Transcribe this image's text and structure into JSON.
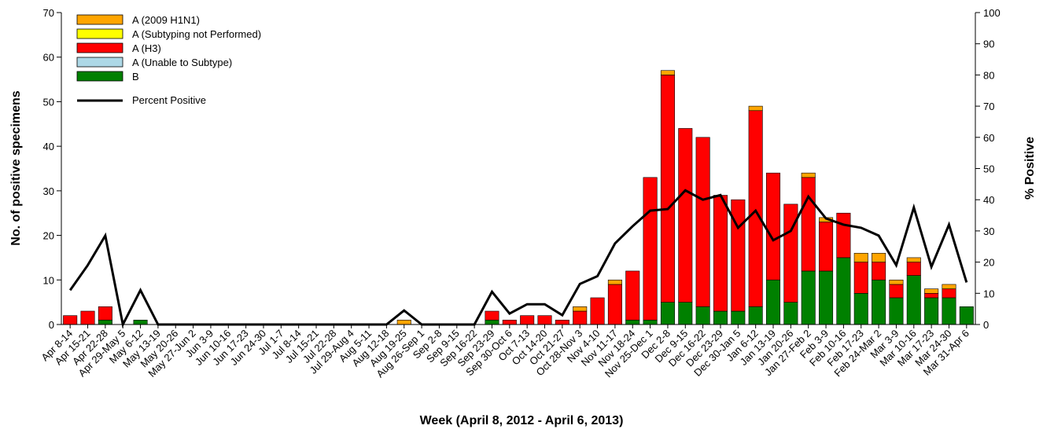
{
  "chart_data": {
    "type": "bar",
    "stacked": true,
    "xlabel": "Week (April 8, 2012 - April 6, 2013)",
    "ylabel": "No. of positive specimens",
    "y2label": "% Positive",
    "ylim": [
      0,
      70
    ],
    "yticks": [
      0,
      10,
      20,
      30,
      40,
      50,
      60,
      70
    ],
    "y2lim": [
      0,
      100
    ],
    "y2ticks": [
      0,
      10,
      20,
      30,
      40,
      50,
      60,
      70,
      80,
      90,
      100
    ],
    "grid": false,
    "legend_position": "top-left",
    "categories": [
      "Apr 8-14",
      "Apr 15-21",
      "Apr 22-28",
      "Apr 29-May 5",
      "May 6-12",
      "May 13-19",
      "May 20-26",
      "May 27-Jun 2",
      "Jun 3-9",
      "Jun 10-16",
      "Jun 17-23",
      "Jun 24-30",
      "Jul 1-7",
      "Jul 8-14",
      "Jul 15-21",
      "Jul 22-28",
      "Jul 29-Aug 4",
      "Aug 5-11",
      "Aug 12-18",
      "Aug 19-25",
      "Aug 26-Sep 1",
      "Sep 2-8",
      "Sep 9-15",
      "Sep 16-22",
      "Sep 23-29",
      "Sep 30-Oct 6",
      "Oct 7-13",
      "Oct 14-20",
      "Oct 21-27",
      "Oct 28-Nov 3",
      "Nov 4-10",
      "Nov 11-17",
      "Nov 18-24",
      "Nov 25-Dec 1",
      "Dec 2-8",
      "Dec 9-15",
      "Dec 16-22",
      "Dec 23-29",
      "Dec 30-Jan 5",
      "Jan 6-12",
      "Jan 13-19",
      "Jan 20-26",
      "Jan 27-Feb 2",
      "Feb 3-9",
      "Feb 10-16",
      "Feb 17-23",
      "Feb 24-Mar 2",
      "Mar 3-9",
      "Mar 10-16",
      "Mar 17-23",
      "Mar 24-30",
      "Mar 31-Apr 6"
    ],
    "series": [
      {
        "name": "B",
        "color": "#008000",
        "values": [
          0,
          0,
          1,
          0,
          1,
          0,
          0,
          0,
          0,
          0,
          0,
          0,
          0,
          0,
          0,
          0,
          0,
          0,
          0,
          0,
          0,
          0,
          0,
          0,
          1,
          0,
          0,
          0,
          0,
          0,
          0,
          0,
          1,
          1,
          5,
          5,
          4,
          3,
          3,
          4,
          10,
          5,
          12,
          12,
          15,
          7,
          10,
          6,
          11,
          6,
          6,
          4
        ]
      },
      {
        "name": "A (Unable to Subtype)",
        "color": "#add8e6",
        "values": [
          0,
          0,
          0,
          0,
          0,
          0,
          0,
          0,
          0,
          0,
          0,
          0,
          0,
          0,
          0,
          0,
          0,
          0,
          0,
          0,
          0,
          0,
          0,
          0,
          0,
          0,
          0,
          0,
          0,
          0,
          0,
          0,
          0,
          0,
          0,
          0,
          0,
          0,
          0,
          0,
          0,
          0,
          0,
          0,
          0,
          0,
          0,
          0,
          0,
          0,
          0,
          0
        ]
      },
      {
        "name": "A (H3)",
        "color": "#ff0000",
        "values": [
          2,
          3,
          3,
          0,
          0,
          0,
          0,
          0,
          0,
          0,
          0,
          0,
          0,
          0,
          0,
          0,
          0,
          0,
          0,
          0,
          0,
          0,
          0,
          0,
          2,
          1,
          2,
          2,
          1,
          3,
          6,
          9,
          11,
          32,
          51,
          39,
          38,
          26,
          25,
          44,
          24,
          22,
          21,
          11,
          10,
          7,
          4,
          3,
          3,
          1,
          2,
          0
        ]
      },
      {
        "name": "A (Subtyping not Performed)",
        "color": "#ffff00",
        "values": [
          0,
          0,
          0,
          0,
          0,
          0,
          0,
          0,
          0,
          0,
          0,
          0,
          0,
          0,
          0,
          0,
          0,
          0,
          0,
          0,
          0,
          0,
          0,
          0,
          0,
          0,
          0,
          0,
          0,
          0,
          0,
          0,
          0,
          0,
          0,
          0,
          0,
          0,
          0,
          0,
          0,
          0,
          0,
          0,
          0,
          0,
          0,
          0,
          0,
          0,
          0,
          0
        ]
      },
      {
        "name": "A (2009 H1N1)",
        "color": "#ffa500",
        "values": [
          0,
          0,
          0,
          0,
          0,
          0,
          0,
          0,
          0,
          0,
          0,
          0,
          0,
          0,
          0,
          0,
          0,
          0,
          0,
          1,
          0,
          0,
          0,
          0,
          0,
          0,
          0,
          0,
          0,
          1,
          0,
          1,
          0,
          0,
          1,
          0,
          0,
          0,
          0,
          1,
          0,
          0,
          1,
          1,
          0,
          2,
          2,
          1,
          1,
          1,
          1,
          0
        ]
      }
    ],
    "line": {
      "name": "Percent Positive",
      "axis": "y2",
      "color": "#000000",
      "values": [
        11,
        19,
        28.5,
        0,
        11,
        0,
        0,
        0,
        0,
        0,
        0,
        0,
        0,
        0,
        0,
        0,
        0,
        0,
        0,
        4.5,
        0,
        0,
        0,
        0,
        10.5,
        3.5,
        6.5,
        6.5,
        3,
        13,
        15.5,
        26,
        31.5,
        36.5,
        37,
        43,
        40,
        41.5,
        31,
        36.5,
        27,
        30,
        41,
        34,
        32,
        31,
        28.5,
        19,
        37.5,
        18.5,
        32,
        13.5
      ]
    },
    "legend_order": [
      "A (2009 H1N1)",
      "A (Subtyping not Performed)",
      "A (H3)",
      "A (Unable to Subtype)",
      "B",
      "Percent Positive"
    ]
  }
}
